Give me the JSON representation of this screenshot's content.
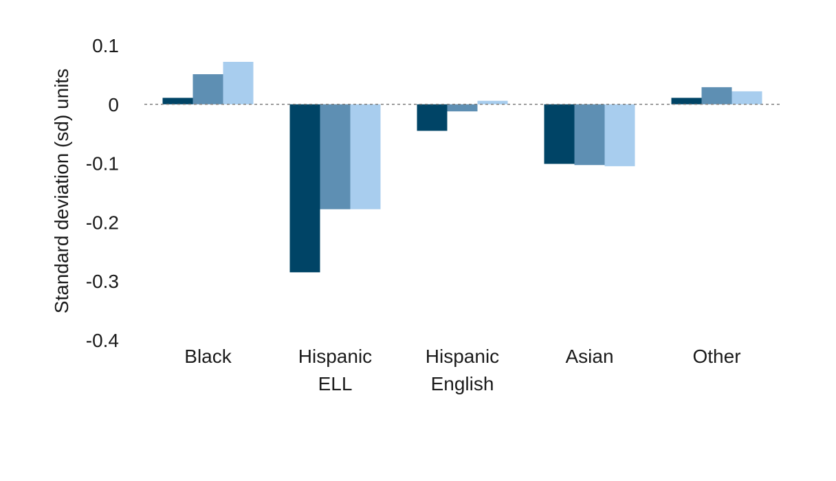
{
  "chart_data": {
    "type": "bar",
    "title": "",
    "xlabel": "",
    "ylabel": "Standard deviation (sd) units",
    "ylim": [
      -0.4,
      0.1
    ],
    "yticks": [
      0.1,
      0,
      -0.1,
      -0.2,
      -0.3,
      -0.4
    ],
    "ytick_labels": [
      "0.1",
      "0",
      "-0.1",
      "-0.2",
      "-0.3",
      "-0.4"
    ],
    "grid": false,
    "zero_line": "dashed",
    "categories": [
      [
        "Black"
      ],
      [
        "Hispanic",
        "ELL"
      ],
      [
        "Hispanic",
        "English"
      ],
      [
        "Asian"
      ],
      [
        "Other"
      ]
    ],
    "series": [
      {
        "color": "#004466",
        "values": [
          0.011,
          -0.285,
          -0.045,
          -0.101,
          0.011
        ]
      },
      {
        "color": "#5e8fb3",
        "values": [
          0.051,
          -0.178,
          -0.012,
          -0.103,
          0.029
        ]
      },
      {
        "color": "#a8cdee",
        "values": [
          0.072,
          -0.178,
          0.006,
          -0.105,
          0.022
        ]
      }
    ]
  }
}
